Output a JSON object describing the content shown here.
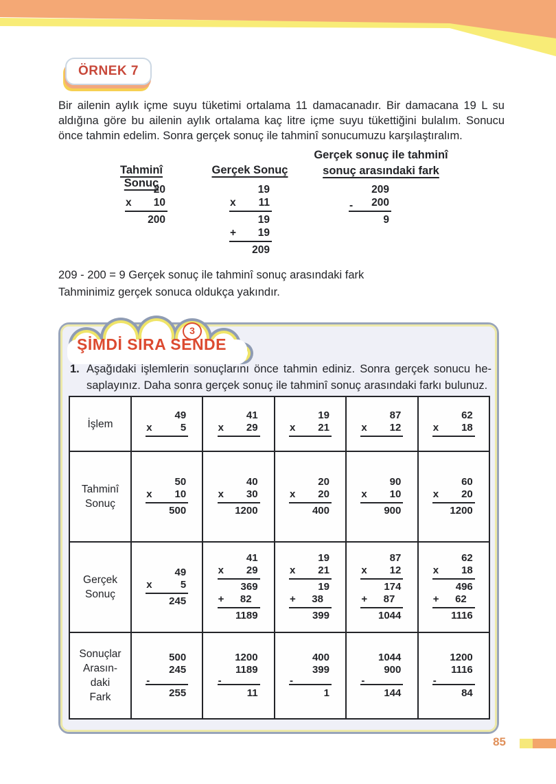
{
  "page": {
    "number": "85"
  },
  "colors": {
    "banner_orange": "#f4a875",
    "banner_yellow": "#f8ec77",
    "badge_border": "#cbd7e3",
    "badge_text": "#c8483a",
    "badge_shadow_salmon": "#f2a87e",
    "badge_shadow_yellow": "#f6d052",
    "ink": "#232428",
    "title_red": "#dc4a30",
    "panel_border": "#98a4ba",
    "panel_inner_yellow": "#ede9a9",
    "panel_bg": "#eff0f7",
    "cloud_outline": "#8f9cb3",
    "cloud_yellow": "#efe468",
    "table_bg": "#fefefe",
    "page_number": "#e0905a",
    "footer_yellow": "#f6e87a",
    "footer_orange": "#f3a66b"
  },
  "example": {
    "badge_label": "ÖRNEK 7",
    "intro_lines": [
      "Bir ailenin aylık içme suyu tüketimi ortalama 11 damacanadır. Bir damacana 19 L su",
      "aldığına göre bu ailenin aylık ortalama kaç litre içme suyu tükettiğini bulalım. Sonucu",
      "önce tahmin edelim. Sonra gerçek sonuç ile tahminî sonucumuzu karşılaştıralım."
    ],
    "col1_heading": "Tahminî Sonuç",
    "col2_heading": "Gerçek Sonuç",
    "col3_heading_line1": "Gerçek sonuç ile tahminî",
    "col3_heading_line2": "sonuç arasındaki fark",
    "calc_tahmini": [
      [
        "n",
        "20"
      ],
      [
        "o",
        "x",
        "10"
      ],
      [
        "r"
      ],
      [
        "n",
        "200"
      ]
    ],
    "calc_gercek": [
      [
        "n",
        "19"
      ],
      [
        "o",
        "x",
        "11"
      ],
      [
        "r"
      ],
      [
        "n",
        "19"
      ],
      [
        "o",
        "+",
        "19"
      ],
      [
        "r"
      ],
      [
        "n",
        "209"
      ]
    ],
    "calc_fark": [
      [
        "n",
        "209"
      ],
      [
        "om",
        "-",
        "200"
      ],
      [
        "r"
      ],
      [
        "n",
        "9"
      ]
    ],
    "conclusion_line1": "209 - 200 = 9 Gerçek sonuç ile tahminî sonuç arasındaki fark",
    "conclusion_line2": "Tahminimiz gerçek sonuca oldukça yakındır."
  },
  "activity": {
    "number_badge": "3",
    "title": "ŞİMDİ SIRA SENDE",
    "item_number": "1.",
    "instruction_lines": [
      "Aşağıdaki işlemlerin sonuçlarını önce tahmin ediniz. Sonra gerçek sonucu he-",
      "saplayınız. Daha sonra gerçek sonuç ile tahminî sonuç arasındaki farkı bulunuz."
    ],
    "table": {
      "row_labels": [
        "İşlem",
        "Tahminî\nSonuç",
        "Gerçek\nSonuç",
        "Sonuçlar\nArasın-\ndaki\nFark"
      ],
      "islem": [
        [
          [
            "n",
            "49"
          ],
          [
            "o",
            "x",
            "5"
          ],
          [
            "r"
          ]
        ],
        [
          [
            "n",
            "41"
          ],
          [
            "o",
            "x",
            "29"
          ],
          [
            "r"
          ]
        ],
        [
          [
            "n",
            "19"
          ],
          [
            "o",
            "x",
            "21"
          ],
          [
            "r"
          ]
        ],
        [
          [
            "n",
            "87"
          ],
          [
            "o",
            "x",
            "12"
          ],
          [
            "r"
          ]
        ],
        [
          [
            "n",
            "62"
          ],
          [
            "o",
            "x",
            "18"
          ],
          [
            "r"
          ]
        ]
      ],
      "tahmini": [
        [
          [
            "n",
            "50"
          ],
          [
            "o",
            "x",
            "10"
          ],
          [
            "r"
          ],
          [
            "n",
            "500"
          ]
        ],
        [
          [
            "n",
            "40"
          ],
          [
            "o",
            "x",
            "30"
          ],
          [
            "r"
          ],
          [
            "n",
            "1200"
          ]
        ],
        [
          [
            "n",
            "20"
          ],
          [
            "o",
            "x",
            "20"
          ],
          [
            "r"
          ],
          [
            "n",
            "400"
          ]
        ],
        [
          [
            "n",
            "90"
          ],
          [
            "o",
            "x",
            "10"
          ],
          [
            "r"
          ],
          [
            "n",
            "900"
          ]
        ],
        [
          [
            "n",
            "60"
          ],
          [
            "o",
            "x",
            "20"
          ],
          [
            "r"
          ],
          [
            "n",
            "1200"
          ]
        ]
      ],
      "gercek": [
        [
          [
            "n",
            "49"
          ],
          [
            "o",
            "x",
            "5"
          ],
          [
            "r"
          ],
          [
            "n",
            "245"
          ]
        ],
        [
          [
            "n",
            "41"
          ],
          [
            "o",
            "x",
            "29"
          ],
          [
            "r"
          ],
          [
            "n",
            "369"
          ],
          [
            "os",
            "+",
            "82"
          ],
          [
            "r"
          ],
          [
            "n",
            "1189"
          ]
        ],
        [
          [
            "n",
            "19"
          ],
          [
            "o",
            "x",
            "21"
          ],
          [
            "r"
          ],
          [
            "n",
            "19"
          ],
          [
            "os",
            "+",
            "38"
          ],
          [
            "r"
          ],
          [
            "n",
            "399"
          ]
        ],
        [
          [
            "n",
            "87"
          ],
          [
            "o",
            "x",
            "12"
          ],
          [
            "r"
          ],
          [
            "n",
            "174"
          ],
          [
            "os",
            "+",
            "87"
          ],
          [
            "r"
          ],
          [
            "n",
            "1044"
          ]
        ],
        [
          [
            "n",
            "62"
          ],
          [
            "o",
            "x",
            "18"
          ],
          [
            "r"
          ],
          [
            "n",
            "496"
          ],
          [
            "os",
            "+",
            "62"
          ],
          [
            "r"
          ],
          [
            "n",
            "1116"
          ]
        ]
      ],
      "fark": [
        [
          [
            "n",
            "500"
          ],
          [
            "n",
            "245"
          ],
          [
            "ro",
            "-"
          ],
          [
            "n",
            "255"
          ]
        ],
        [
          [
            "n",
            "1200"
          ],
          [
            "n",
            "1189"
          ],
          [
            "ro",
            "-"
          ],
          [
            "n",
            "11"
          ]
        ],
        [
          [
            "n",
            "400"
          ],
          [
            "n",
            "399"
          ],
          [
            "ro",
            "-"
          ],
          [
            "n",
            "1"
          ]
        ],
        [
          [
            "n",
            "1044"
          ],
          [
            "n",
            "900"
          ],
          [
            "ro",
            "-"
          ],
          [
            "n",
            "144"
          ]
        ],
        [
          [
            "n",
            "1200"
          ],
          [
            "n",
            "1116"
          ],
          [
            "ro",
            "-"
          ],
          [
            "n",
            "84"
          ]
        ]
      ]
    }
  }
}
